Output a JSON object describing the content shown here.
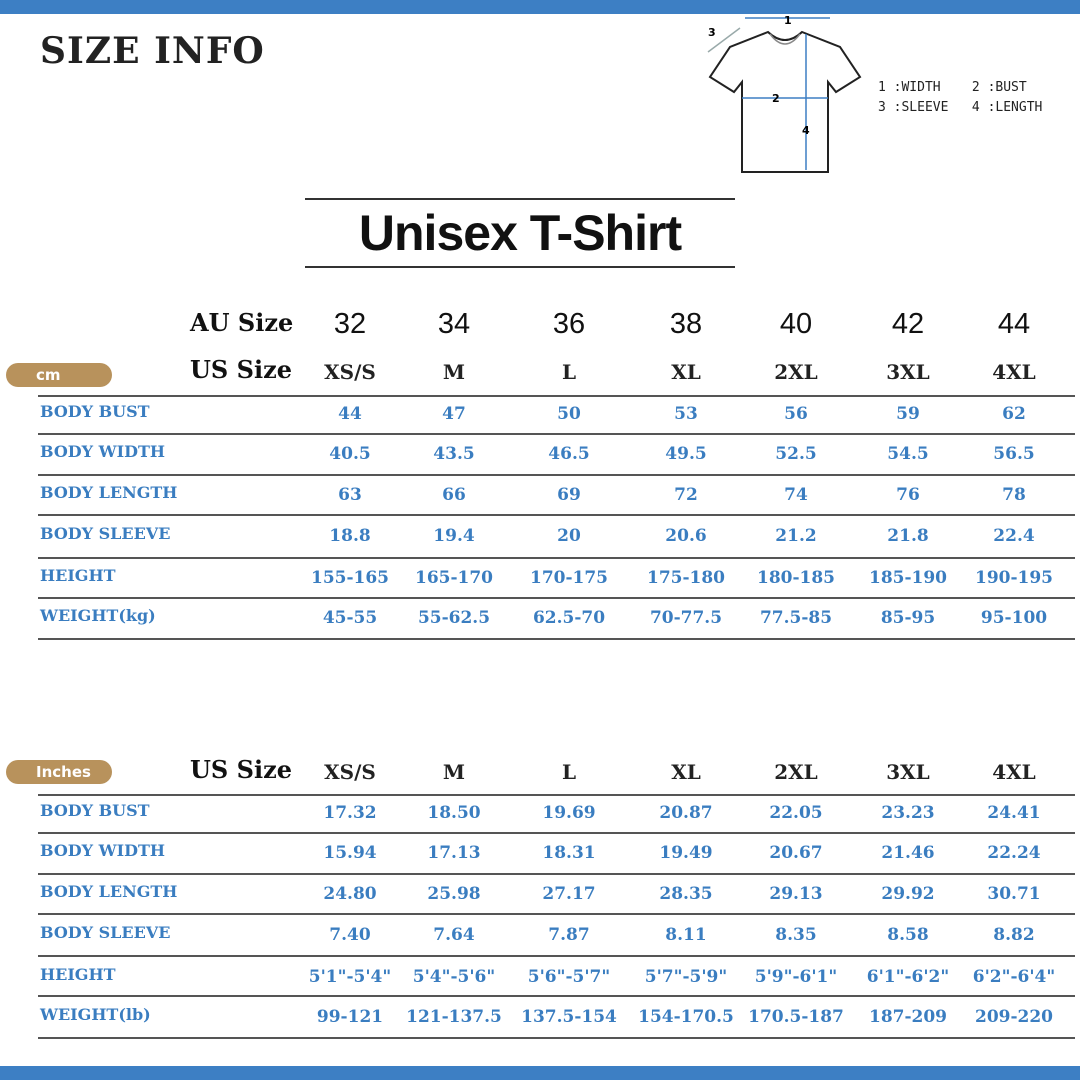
{
  "title": "SIZE INFO",
  "diagram": {
    "numbers": [
      "1",
      "2",
      "3",
      "4"
    ],
    "legend_line1": "1 :WIDTH    2 :BUST",
    "legend_line2": "3 :SLEEVE   4 :LENGTH"
  },
  "product_title": "Unisex T-Shirt",
  "colors": {
    "accent_blue": "#3d7fc4",
    "unit_badge": "#b8925c",
    "value_text": "#3a7dc0"
  },
  "cm_table": {
    "unit_label": "cm",
    "au_label": "AU Size",
    "us_label": "US Size",
    "au_sizes": [
      "32",
      "34",
      "36",
      "38",
      "40",
      "42",
      "44"
    ],
    "us_sizes": [
      "XS/S",
      "M",
      "L",
      "XL",
      "2XL",
      "3XL",
      "4XL"
    ],
    "rows": [
      {
        "label": "BODY BUST",
        "values": [
          "44",
          "47",
          "50",
          "53",
          "56",
          "59",
          "62"
        ]
      },
      {
        "label": "BODY WIDTH",
        "values": [
          "40.5",
          "43.5",
          "46.5",
          "49.5",
          "52.5",
          "54.5",
          "56.5"
        ]
      },
      {
        "label": "BODY LENGTH",
        "values": [
          "63",
          "66",
          "69",
          "72",
          "74",
          "76",
          "78"
        ]
      },
      {
        "label": "BODY SLEEVE",
        "values": [
          "18.8",
          "19.4",
          "20",
          "20.6",
          "21.2",
          "21.8",
          "22.4"
        ]
      },
      {
        "label": "HEIGHT",
        "values": [
          "155-165",
          "165-170",
          "170-175",
          "175-180",
          "180-185",
          "185-190",
          "190-195"
        ]
      },
      {
        "label": "WEIGHT(kg)",
        "values": [
          "45-55",
          "55-62.5",
          "62.5-70",
          "70-77.5",
          "77.5-85",
          "85-95",
          "95-100"
        ]
      }
    ]
  },
  "inch_table": {
    "unit_label": "Inches",
    "us_label": "US Size",
    "us_sizes": [
      "XS/S",
      "M",
      "L",
      "XL",
      "2XL",
      "3XL",
      "4XL"
    ],
    "rows": [
      {
        "label": "BODY BUST",
        "values": [
          "17.32",
          "18.50",
          "19.69",
          "20.87",
          "22.05",
          "23.23",
          "24.41"
        ]
      },
      {
        "label": "BODY WIDTH",
        "values": [
          "15.94",
          "17.13",
          "18.31",
          "19.49",
          "20.67",
          "21.46",
          "22.24"
        ]
      },
      {
        "label": "BODY LENGTH",
        "values": [
          "24.80",
          "25.98",
          "27.17",
          "28.35",
          "29.13",
          "29.92",
          "30.71"
        ]
      },
      {
        "label": "BODY SLEEVE",
        "values": [
          "7.40",
          "7.64",
          "7.87",
          "8.11",
          "8.35",
          "8.58",
          "8.82"
        ]
      },
      {
        "label": "HEIGHT",
        "values": [
          "5'1\"-5'4\"",
          "5'4\"-5'6\"",
          "5'6\"-5'7\"",
          "5'7\"-5'9\"",
          "5'9\"-6'1\"",
          "6'1\"-6'2\"",
          "6'2\"-6'4\""
        ]
      },
      {
        "label": "WEIGHT(lb)",
        "values": [
          "99-121",
          "121-137.5",
          "137.5-154",
          "154-170.5",
          "170.5-187",
          "187-209",
          "209-220"
        ]
      }
    ]
  }
}
